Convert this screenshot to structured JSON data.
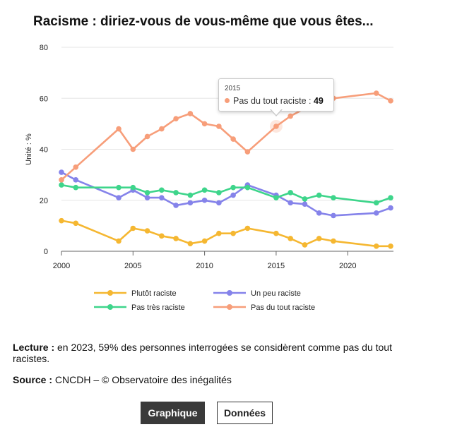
{
  "chart_data": {
    "type": "line",
    "title": "Racisme : diriez-vous de vous-même que vous êtes...",
    "ylabel": "Unité : %",
    "xlabel": "",
    "xlim": [
      2000,
      2023
    ],
    "ylim": [
      0,
      80
    ],
    "yticks": [
      0,
      20,
      40,
      60,
      80
    ],
    "xticks": [
      2000,
      2005,
      2010,
      2015,
      2020
    ],
    "series": [
      {
        "name": "Plutôt raciste",
        "color": "#f5b731",
        "points": [
          [
            2000,
            12
          ],
          [
            2001,
            11
          ],
          [
            2004,
            4
          ],
          [
            2005,
            9
          ],
          [
            2006,
            8
          ],
          [
            2007,
            6
          ],
          [
            2008,
            5
          ],
          [
            2009,
            3
          ],
          [
            2010,
            4
          ],
          [
            2011,
            7
          ],
          [
            2012,
            7
          ],
          [
            2013,
            9
          ],
          [
            2015,
            7
          ],
          [
            2016,
            5
          ],
          [
            2017,
            2.5
          ],
          [
            2018,
            5
          ],
          [
            2019,
            4
          ],
          [
            2022,
            2
          ],
          [
            2023,
            2
          ]
        ]
      },
      {
        "name": "Un peu raciste",
        "color": "#8583ea",
        "points": [
          [
            2000,
            31
          ],
          [
            2001,
            28
          ],
          [
            2004,
            21
          ],
          [
            2005,
            24
          ],
          [
            2006,
            21
          ],
          [
            2007,
            21
          ],
          [
            2008,
            18
          ],
          [
            2009,
            19
          ],
          [
            2010,
            20
          ],
          [
            2011,
            19
          ],
          [
            2012,
            22
          ],
          [
            2013,
            26
          ],
          [
            2015,
            22
          ],
          [
            2016,
            19
          ],
          [
            2017,
            18.5
          ],
          [
            2018,
            15
          ],
          [
            2019,
            14
          ],
          [
            2022,
            15
          ],
          [
            2023,
            17
          ]
        ]
      },
      {
        "name": "Pas très raciste",
        "color": "#3ed58b",
        "points": [
          [
            2000,
            26
          ],
          [
            2001,
            25
          ],
          [
            2004,
            25
          ],
          [
            2005,
            25
          ],
          [
            2006,
            23
          ],
          [
            2007,
            24
          ],
          [
            2008,
            23
          ],
          [
            2009,
            22
          ],
          [
            2010,
            24
          ],
          [
            2011,
            23
          ],
          [
            2012,
            25
          ],
          [
            2013,
            25
          ],
          [
            2015,
            21
          ],
          [
            2016,
            23
          ],
          [
            2017,
            20.5
          ],
          [
            2018,
            22
          ],
          [
            2019,
            21
          ],
          [
            2022,
            19
          ],
          [
            2023,
            21
          ]
        ]
      },
      {
        "name": "Pas du tout raciste",
        "color": "#f79e7a",
        "points": [
          [
            2000,
            28
          ],
          [
            2001,
            33
          ],
          [
            2004,
            48
          ],
          [
            2005,
            40
          ],
          [
            2006,
            45
          ],
          [
            2007,
            48
          ],
          [
            2008,
            52
          ],
          [
            2009,
            54
          ],
          [
            2010,
            50
          ],
          [
            2011,
            49
          ],
          [
            2012,
            44
          ],
          [
            2013,
            39
          ],
          [
            2015,
            49
          ],
          [
            2016,
            53
          ],
          [
            2017,
            56
          ],
          [
            2018,
            58
          ],
          [
            2019,
            60
          ],
          [
            2022,
            62
          ],
          [
            2023,
            59
          ]
        ]
      }
    ],
    "tooltip": {
      "year": "2015",
      "series": "Pas du tout raciste",
      "label": "Pas du tout raciste :",
      "value": "49"
    }
  },
  "notes": {
    "lecture_label": "Lecture :",
    "lecture_text": " en 2023, 59% des personnes interrogées se considèrent comme pas du tout racistes.",
    "source_label": "Source :",
    "source_text": " CNCDH – © Observatoire des inégalités"
  },
  "buttons": {
    "graph": "Graphique",
    "data": "Données"
  }
}
